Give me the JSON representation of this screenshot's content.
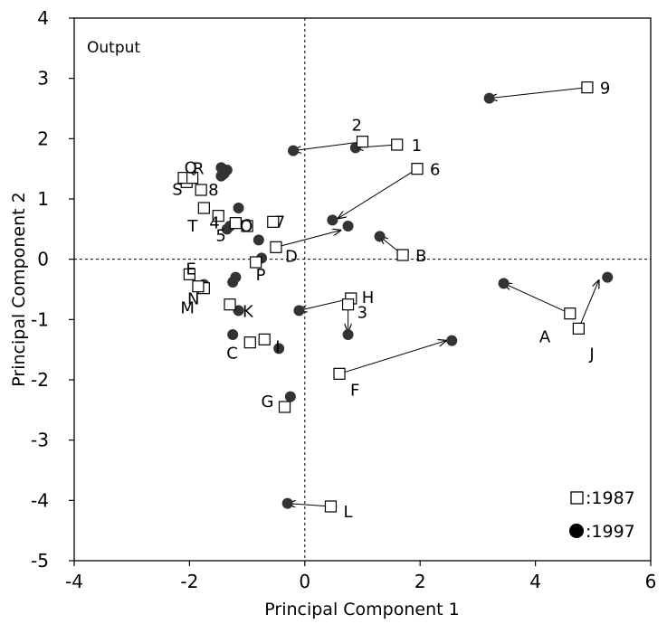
{
  "chart_data": {
    "type": "scatter",
    "title": "Output",
    "xlabel": "Principal Component 1",
    "ylabel": "Principal Component 2",
    "xlim": [
      -4,
      6
    ],
    "ylim": [
      -5,
      4
    ],
    "xticks": [
      "-4",
      "-2",
      "0",
      "2",
      "4",
      "6"
    ],
    "yticks": [
      "4",
      "3",
      "2",
      "1",
      "0",
      "-1",
      "-2",
      "-3",
      "-4",
      "-5"
    ],
    "grid": false,
    "zero_lines": "dotted",
    "legend_position": "bottom-right",
    "colors": {
      "marker": "#333333",
      "axis": "#000000"
    },
    "series": [
      {
        "name": ":1987",
        "marker": "open-square",
        "points": [
          {
            "label": "9",
            "x": 4.9,
            "y": 2.85
          },
          {
            "label": "1",
            "x": 1.6,
            "y": 1.9
          },
          {
            "label": "2",
            "x": 1.0,
            "y": 1.95
          },
          {
            "label": "6",
            "x": 1.95,
            "y": 1.5
          },
          {
            "label": "B",
            "x": 1.7,
            "y": 0.07
          },
          {
            "label": "A",
            "x": 4.6,
            "y": -0.9
          },
          {
            "label": "J",
            "x": 4.75,
            "y": -1.15
          },
          {
            "label": "H",
            "x": 0.8,
            "y": -0.65
          },
          {
            "label": "3",
            "x": 0.75,
            "y": -0.75
          },
          {
            "label": "F",
            "x": 0.6,
            "y": -1.9
          },
          {
            "label": "L",
            "x": 0.45,
            "y": -4.1
          },
          {
            "label": "G",
            "x": -0.35,
            "y": -2.45
          },
          {
            "label": "I",
            "x": -0.7,
            "y": -1.33
          },
          {
            "label": "C",
            "x": -0.95,
            "y": -1.38
          },
          {
            "label": "K",
            "x": -1.3,
            "y": -0.75
          },
          {
            "label": "M",
            "x": -1.75,
            "y": -0.48
          },
          {
            "label": "N",
            "x": -1.85,
            "y": -0.45
          },
          {
            "label": "E",
            "x": -2.0,
            "y": -0.25
          },
          {
            "label": "P",
            "x": -0.85,
            "y": -0.05
          },
          {
            "label": "D",
            "x": -0.5,
            "y": 0.2
          },
          {
            "label": "7",
            "x": -0.55,
            "y": 0.62
          },
          {
            "label": "O",
            "x": -1.0,
            "y": 0.55
          },
          {
            "label": "5",
            "x": -1.2,
            "y": 0.6
          },
          {
            "label": "4",
            "x": -1.5,
            "y": 0.72
          },
          {
            "label": "T",
            "x": -1.75,
            "y": 0.85
          },
          {
            "label": "8",
            "x": -1.8,
            "y": 1.15
          },
          {
            "label": "S",
            "x": -2.05,
            "y": 1.28
          },
          {
            "label": "R",
            "x": -2.1,
            "y": 1.35
          },
          {
            "label": "Q",
            "x": -1.95,
            "y": 1.35
          }
        ]
      },
      {
        "name": ":1997",
        "marker": "filled-circle",
        "points": [
          {
            "x": 3.2,
            "y": 2.67
          },
          {
            "x": 0.88,
            "y": 1.85
          },
          {
            "x": -0.2,
            "y": 1.8
          },
          {
            "x": 0.48,
            "y": 0.65
          },
          {
            "x": 0.75,
            "y": 0.55
          },
          {
            "x": 1.3,
            "y": 0.38
          },
          {
            "x": 3.45,
            "y": -0.4
          },
          {
            "x": 5.25,
            "y": -0.3
          },
          {
            "x": -0.1,
            "y": -0.85
          },
          {
            "x": 0.75,
            "y": -1.25
          },
          {
            "x": 2.55,
            "y": -1.35
          },
          {
            "x": -0.3,
            "y": -4.05
          },
          {
            "x": -0.25,
            "y": -2.28
          },
          {
            "x": -0.45,
            "y": -1.48
          },
          {
            "x": -1.25,
            "y": -1.25
          },
          {
            "x": -1.15,
            "y": -0.85
          },
          {
            "x": -1.2,
            "y": -0.3
          },
          {
            "x": -1.25,
            "y": -0.38
          },
          {
            "x": -1.75,
            "y": -0.42
          },
          {
            "x": -0.75,
            "y": 0.02
          },
          {
            "x": -0.8,
            "y": 0.32
          },
          {
            "x": -1.0,
            "y": 0.58
          },
          {
            "x": -1.15,
            "y": 0.85
          },
          {
            "x": -1.3,
            "y": 0.55
          },
          {
            "x": -1.35,
            "y": 0.5
          },
          {
            "x": -1.45,
            "y": 1.52
          },
          {
            "x": -1.35,
            "y": 1.48
          },
          {
            "x": -1.4,
            "y": 1.42
          },
          {
            "x": -1.45,
            "y": 1.38
          }
        ]
      }
    ],
    "arrows": [
      {
        "from": [
          4.9,
          2.85
        ],
        "to": [
          3.2,
          2.67
        ]
      },
      {
        "from": [
          1.6,
          1.9
        ],
        "to": [
          0.88,
          1.85
        ]
      },
      {
        "from": [
          1.0,
          1.95
        ],
        "to": [
          -0.2,
          1.8
        ]
      },
      {
        "from": [
          1.95,
          1.5
        ],
        "to": [
          0.58,
          0.68
        ]
      },
      {
        "from": [
          1.7,
          0.07
        ],
        "to": [
          1.3,
          0.38
        ]
      },
      {
        "from": [
          4.6,
          -0.9
        ],
        "to": [
          3.45,
          -0.4
        ]
      },
      {
        "from": [
          4.75,
          -1.15
        ],
        "to": [
          5.1,
          -0.35
        ]
      },
      {
        "from": [
          0.8,
          -0.65
        ],
        "to": [
          -0.1,
          -0.85
        ]
      },
      {
        "from": [
          0.75,
          -0.75
        ],
        "to": [
          0.75,
          -1.2
        ]
      },
      {
        "from": [
          0.6,
          -1.9
        ],
        "to": [
          2.45,
          -1.35
        ]
      },
      {
        "from": [
          0.45,
          -4.1
        ],
        "to": [
          -0.3,
          -4.05
        ]
      },
      {
        "from": [
          -0.5,
          0.2
        ],
        "to": [
          0.62,
          0.48
        ]
      }
    ]
  }
}
